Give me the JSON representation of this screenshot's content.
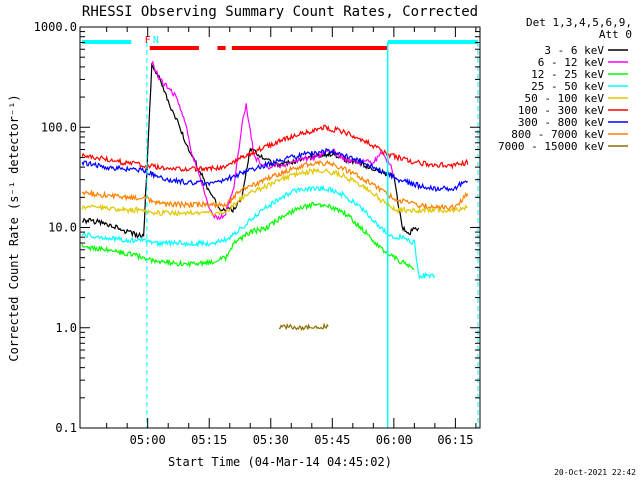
{
  "chart_data": {
    "type": "line",
    "title": "RHESSI Observing Summary Count Rates, Corrected",
    "xlabel": "Start Time (04-Mar-14 04:45:02)",
    "ylabel": "Corrected Count Rate (s⁻¹ detector⁻¹)",
    "yscale": "log",
    "xlim_minutes": [
      -1.5,
      96
    ],
    "ylim": [
      0.1,
      1000
    ],
    "grid": false,
    "legend_placement": "right, outside plot",
    "detectors_label": "Det 1,3,4,5,6,9,",
    "attenuator_label": "Att 0",
    "y_ticks": [
      "1000.0",
      "100.0",
      "10.0",
      "1.0",
      "0.1"
    ],
    "x_ticks": [
      {
        "minute": 15,
        "label": "05:00"
      },
      {
        "minute": 30,
        "label": "05:15"
      },
      {
        "minute": 45,
        "label": "05:30"
      },
      {
        "minute": 60,
        "label": "05:45"
      },
      {
        "minute": 75,
        "label": "06:00"
      },
      {
        "minute": 90,
        "label": "06:15"
      }
    ],
    "flag_markers": [
      {
        "label": "F",
        "color": "#ff0000",
        "minute": 15
      },
      {
        "label": "N",
        "color": "#00ffff",
        "minute": 17
      }
    ],
    "series": [
      {
        "name": "3 - 6 keV",
        "color": "#000000",
        "points": [
          [
            -1,
            12
          ],
          [
            5,
            11
          ],
          [
            10,
            9
          ],
          [
            14,
            8
          ],
          [
            16,
            400
          ],
          [
            18,
            300
          ],
          [
            20,
            180
          ],
          [
            22,
            120
          ],
          [
            25,
            60
          ],
          [
            28,
            35
          ],
          [
            30,
            22
          ],
          [
            33,
            15
          ],
          [
            36,
            15
          ],
          [
            38,
            20
          ],
          [
            40,
            60
          ],
          [
            43,
            50
          ],
          [
            46,
            42
          ],
          [
            50,
            45
          ],
          [
            55,
            50
          ],
          [
            60,
            55
          ],
          [
            63,
            48
          ],
          [
            66,
            45
          ],
          [
            70,
            38
          ],
          [
            73,
            35
          ],
          [
            75,
            33
          ],
          [
            77,
            10
          ],
          [
            79,
            9
          ],
          [
            81,
            10
          ]
        ]
      },
      {
        "name": "6 - 12 keV",
        "color": "#ff00ff",
        "points": [
          [
            16,
            450
          ],
          [
            18,
            300
          ],
          [
            20,
            250
          ],
          [
            22,
            200
          ],
          [
            24,
            120
          ],
          [
            26,
            50
          ],
          [
            28,
            30
          ],
          [
            30,
            15
          ],
          [
            32,
            12
          ],
          [
            34,
            14
          ],
          [
            36,
            25
          ],
          [
            38,
            110
          ],
          [
            39,
            170
          ],
          [
            41,
            50
          ],
          [
            44,
            40
          ],
          [
            48,
            42
          ],
          [
            52,
            48
          ],
          [
            56,
            50
          ],
          [
            60,
            60
          ],
          [
            63,
            48
          ],
          [
            66,
            45
          ],
          [
            70,
            45
          ],
          [
            72,
            55
          ],
          [
            74,
            45
          ],
          [
            75,
            33
          ]
        ]
      },
      {
        "name": "12 - 25 keV",
        "color": "#00ff00",
        "points": [
          [
            -1,
            6.5
          ],
          [
            5,
            6
          ],
          [
            10,
            5.5
          ],
          [
            14,
            5
          ],
          [
            17,
            4.5
          ],
          [
            20,
            4.5
          ],
          [
            25,
            4.3
          ],
          [
            30,
            4.5
          ],
          [
            34,
            5
          ],
          [
            36,
            7
          ],
          [
            40,
            9
          ],
          [
            44,
            10
          ],
          [
            48,
            13
          ],
          [
            52,
            16
          ],
          [
            56,
            17
          ],
          [
            60,
            16
          ],
          [
            64,
            13
          ],
          [
            68,
            9
          ],
          [
            72,
            6
          ],
          [
            75,
            5
          ],
          [
            77,
            4.5
          ],
          [
            79,
            4
          ],
          [
            80,
            4
          ]
        ]
      },
      {
        "name": "25 - 50 keV",
        "color": "#00ffff",
        "points": [
          [
            -1,
            8.5
          ],
          [
            5,
            8
          ],
          [
            10,
            7.5
          ],
          [
            14,
            7.5
          ],
          [
            17,
            7
          ],
          [
            20,
            7
          ],
          [
            25,
            7
          ],
          [
            30,
            7
          ],
          [
            34,
            7.5
          ],
          [
            38,
            10
          ],
          [
            42,
            14
          ],
          [
            46,
            18
          ],
          [
            50,
            23
          ],
          [
            54,
            24
          ],
          [
            58,
            25
          ],
          [
            62,
            22
          ],
          [
            66,
            17
          ],
          [
            70,
            12
          ],
          [
            73,
            9
          ],
          [
            75,
            8
          ],
          [
            77,
            8
          ],
          [
            80,
            7
          ],
          [
            81,
            3.3
          ],
          [
            85,
            3.3
          ]
        ]
      },
      {
        "name": "50 - 100 keV",
        "color": "#e0c800",
        "points": [
          [
            -1,
            16
          ],
          [
            5,
            15.5
          ],
          [
            10,
            15
          ],
          [
            14,
            15
          ],
          [
            17,
            14
          ],
          [
            20,
            14
          ],
          [
            25,
            14
          ],
          [
            30,
            14
          ],
          [
            34,
            14
          ],
          [
            38,
            20
          ],
          [
            42,
            24
          ],
          [
            46,
            28
          ],
          [
            50,
            33
          ],
          [
            54,
            36
          ],
          [
            58,
            37
          ],
          [
            62,
            34
          ],
          [
            66,
            28
          ],
          [
            70,
            22
          ],
          [
            73,
            17
          ],
          [
            76,
            15
          ],
          [
            80,
            15
          ],
          [
            85,
            15
          ],
          [
            90,
            15
          ],
          [
            93,
            16
          ]
        ]
      },
      {
        "name": "100 - 300 keV",
        "color": "#ff0000",
        "points": [
          [
            -1,
            52
          ],
          [
            5,
            48
          ],
          [
            10,
            44
          ],
          [
            14,
            42
          ],
          [
            17,
            40
          ],
          [
            20,
            38
          ],
          [
            25,
            38
          ],
          [
            30,
            39
          ],
          [
            34,
            40
          ],
          [
            38,
            50
          ],
          [
            42,
            60
          ],
          [
            46,
            70
          ],
          [
            50,
            80
          ],
          [
            54,
            90
          ],
          [
            58,
            100
          ],
          [
            62,
            92
          ],
          [
            66,
            80
          ],
          [
            70,
            65
          ],
          [
            73,
            55
          ],
          [
            76,
            50
          ],
          [
            80,
            45
          ],
          [
            85,
            42
          ],
          [
            90,
            42
          ],
          [
            93,
            45
          ]
        ]
      },
      {
        "name": "300 - 800 keV",
        "color": "#0000ff",
        "points": [
          [
            -1,
            45
          ],
          [
            5,
            40
          ],
          [
            10,
            38
          ],
          [
            14,
            37
          ],
          [
            17,
            33
          ],
          [
            20,
            30
          ],
          [
            25,
            28
          ],
          [
            30,
            28
          ],
          [
            34,
            30
          ],
          [
            38,
            35
          ],
          [
            42,
            40
          ],
          [
            46,
            45
          ],
          [
            50,
            50
          ],
          [
            54,
            55
          ],
          [
            58,
            58
          ],
          [
            62,
            55
          ],
          [
            66,
            48
          ],
          [
            70,
            40
          ],
          [
            73,
            35
          ],
          [
            76,
            30
          ],
          [
            80,
            27
          ],
          [
            85,
            24
          ],
          [
            90,
            25
          ],
          [
            93,
            30
          ]
        ]
      },
      {
        "name": "800 - 7000 keV",
        "color": "#ff8000",
        "points": [
          [
            -1,
            22
          ],
          [
            5,
            21
          ],
          [
            10,
            20
          ],
          [
            14,
            20
          ],
          [
            17,
            18
          ],
          [
            20,
            17
          ],
          [
            25,
            17
          ],
          [
            30,
            17
          ],
          [
            34,
            17
          ],
          [
            38,
            24
          ],
          [
            42,
            28
          ],
          [
            46,
            33
          ],
          [
            50,
            38
          ],
          [
            54,
            42
          ],
          [
            58,
            44
          ],
          [
            62,
            40
          ],
          [
            66,
            33
          ],
          [
            70,
            27
          ],
          [
            73,
            22
          ],
          [
            76,
            19
          ],
          [
            80,
            17
          ],
          [
            85,
            16
          ],
          [
            90,
            16
          ],
          [
            93,
            22
          ]
        ]
      },
      {
        "name": "7000 - 15000 keV",
        "color": "#8b7000",
        "points": [
          [
            47,
            1.02
          ],
          [
            50,
            1.02
          ],
          [
            53,
            1.02
          ],
          [
            56,
            1.02
          ],
          [
            59,
            1.02
          ]
        ]
      }
    ]
  },
  "footer": {
    "date": "20-Oct-2021 22:42"
  }
}
